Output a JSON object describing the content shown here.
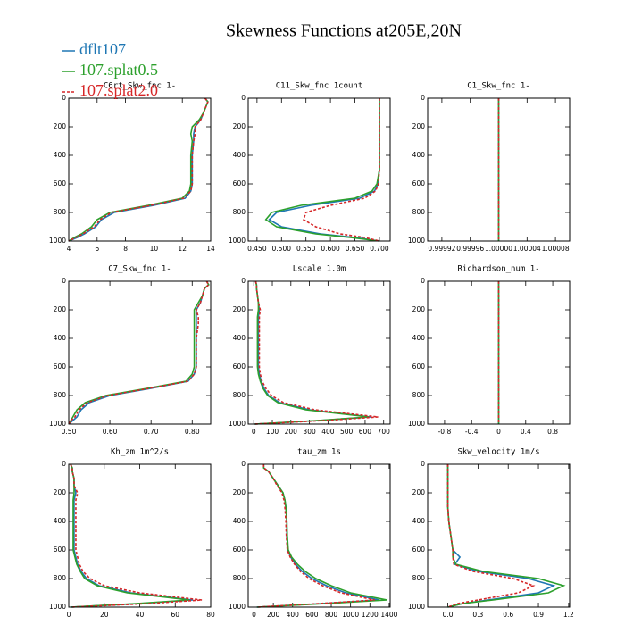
{
  "title": "Skewness Functions at205E,20N",
  "legend": [
    {
      "name": "dflt107",
      "color": "#1f77b4",
      "dash": "solid"
    },
    {
      "name": "107.splat0.5",
      "color": "#2ca02c",
      "dash": "solid"
    },
    {
      "name": "107.splat2.0",
      "color": "#d62728",
      "dash": "dashed"
    }
  ],
  "chart_data": [
    {
      "type": "line",
      "title": "C6rt_Skw_fnc  1-",
      "xlim": [
        4,
        14
      ],
      "xticks": [
        4,
        6,
        8,
        10,
        12,
        14
      ],
      "ylim": [
        1000,
        0
      ],
      "yticks": [
        0,
        200,
        400,
        600,
        800,
        1000
      ],
      "y": [
        0,
        25,
        50,
        100,
        150,
        200,
        250,
        300,
        400,
        500,
        600,
        650,
        700,
        750,
        800,
        850,
        900,
        950,
        975,
        1000
      ],
      "series": [
        {
          "values": [
            13.6,
            13.8,
            13.7,
            13.5,
            13.3,
            12.9,
            12.8,
            12.8,
            12.7,
            12.7,
            12.7,
            12.6,
            12.2,
            10,
            7.2,
            6.3,
            5.9,
            5.1,
            4.6,
            4.0
          ]
        },
        {
          "values": [
            13.6,
            13.8,
            13.7,
            13.5,
            13.2,
            12.7,
            12.6,
            12.7,
            12.6,
            12.6,
            12.6,
            12.5,
            12.0,
            9.6,
            6.9,
            6.0,
            5.6,
            4.9,
            4.4,
            4.0
          ]
        },
        {
          "values": [
            13.6,
            13.8,
            13.7,
            13.5,
            13.3,
            12.9,
            12.9,
            12.8,
            12.7,
            12.7,
            12.7,
            12.6,
            12.1,
            9.8,
            7.0,
            6.2,
            5.8,
            5.0,
            4.5,
            4.0
          ]
        }
      ]
    },
    {
      "type": "line",
      "title": "C11_Skw_fnc  1count",
      "xlim": [
        0.432,
        0.722
      ],
      "xticks": [
        {
          "value": 0.45,
          "label": "0.450"
        },
        {
          "value": 0.5,
          "label": "0.500"
        },
        {
          "value": 0.55,
          "label": "0.550"
        },
        {
          "value": 0.6,
          "label": "0.600"
        },
        {
          "value": 0.65,
          "label": "0.650"
        },
        {
          "value": 0.7,
          "label": "0.700"
        }
      ],
      "ylim": [
        1000,
        0
      ],
      "yticks": [
        0,
        200,
        400,
        600,
        800,
        1000
      ],
      "y": [
        0,
        25,
        50,
        100,
        150,
        200,
        250,
        300,
        400,
        500,
        600,
        650,
        700,
        750,
        800,
        850,
        900,
        950,
        975,
        1000
      ],
      "series": [
        {
          "values": [
            0.7,
            0.7,
            0.7,
            0.7,
            0.7,
            0.7,
            0.7,
            0.7,
            0.7,
            0.7,
            0.697,
            0.69,
            0.66,
            0.56,
            0.49,
            0.475,
            0.5,
            0.58,
            0.65,
            0.7
          ]
        },
        {
          "values": [
            0.7,
            0.7,
            0.7,
            0.7,
            0.7,
            0.7,
            0.7,
            0.7,
            0.7,
            0.7,
            0.695,
            0.685,
            0.65,
            0.54,
            0.48,
            0.468,
            0.49,
            0.57,
            0.64,
            0.7
          ]
        },
        {
          "values": [
            0.7,
            0.7,
            0.7,
            0.7,
            0.7,
            0.7,
            0.7,
            0.7,
            0.7,
            0.7,
            0.698,
            0.692,
            0.67,
            0.6,
            0.55,
            0.545,
            0.57,
            0.62,
            0.67,
            0.7
          ]
        }
      ]
    },
    {
      "type": "line",
      "title": "C1_Skw_fnc  1-",
      "xlim": [
        0.9999,
        1.0001
      ],
      "xticks": [
        0.99992,
        0.99996,
        {
          "value": 1,
          "label": "1.00000"
        },
        1.00004,
        1.00008
      ],
      "ylim": [
        1000,
        0
      ],
      "yticks": [
        0,
        200,
        400,
        600,
        800,
        1000
      ],
      "y": [
        0,
        1000
      ],
      "series": [
        {
          "values": [
            1,
            1
          ]
        },
        {
          "values": [
            1,
            1
          ]
        },
        {
          "values": [
            1,
            1
          ]
        }
      ]
    },
    {
      "type": "line",
      "title": "C7_Skw_fnc  1-",
      "xlim": [
        0.5,
        0.845
      ],
      "xticks": [
        {
          "value": 0.5,
          "label": "0.50"
        },
        {
          "value": 0.6,
          "label": "0.60"
        },
        {
          "value": 0.7,
          "label": "0.70"
        },
        {
          "value": 0.8,
          "label": "0.80"
        }
      ],
      "ylim": [
        1000,
        0
      ],
      "yticks": [
        0,
        200,
        400,
        600,
        800,
        1000
      ],
      "y": [
        0,
        25,
        50,
        100,
        150,
        200,
        250,
        300,
        400,
        500,
        600,
        650,
        700,
        750,
        800,
        850,
        900,
        950,
        975,
        1000
      ],
      "series": [
        {
          "values": [
            0.835,
            0.84,
            0.83,
            0.825,
            0.82,
            0.81,
            0.81,
            0.81,
            0.81,
            0.81,
            0.81,
            0.805,
            0.79,
            0.7,
            0.6,
            0.55,
            0.53,
            0.52,
            0.51,
            0.5
          ]
        },
        {
          "values": [
            0.835,
            0.84,
            0.83,
            0.825,
            0.815,
            0.805,
            0.805,
            0.805,
            0.805,
            0.805,
            0.805,
            0.8,
            0.785,
            0.69,
            0.59,
            0.54,
            0.52,
            0.51,
            0.505,
            0.5
          ]
        },
        {
          "values": [
            0.835,
            0.84,
            0.83,
            0.825,
            0.82,
            0.81,
            0.815,
            0.815,
            0.81,
            0.81,
            0.81,
            0.805,
            0.79,
            0.695,
            0.595,
            0.545,
            0.525,
            0.515,
            0.505,
            0.5
          ]
        }
      ]
    },
    {
      "type": "line",
      "title": "Lscale  1.0m",
      "xlim": [
        -30,
        735
      ],
      "xticks": [
        0,
        100,
        200,
        300,
        400,
        500,
        600,
        700
      ],
      "ylim": [
        1000,
        0
      ],
      "yticks": [
        0,
        200,
        400,
        600,
        800,
        1000
      ],
      "y": [
        0,
        25,
        50,
        100,
        150,
        200,
        250,
        300,
        400,
        500,
        600,
        650,
        700,
        750,
        800,
        850,
        900,
        950,
        975,
        1000
      ],
      "series": [
        {
          "values": [
            10,
            15,
            15,
            20,
            25,
            30,
            25,
            25,
            25,
            25,
            25,
            30,
            40,
            55,
            80,
            140,
            300,
            630,
            350,
            5
          ]
        },
        {
          "values": [
            10,
            15,
            15,
            20,
            25,
            25,
            20,
            20,
            20,
            20,
            20,
            25,
            35,
            50,
            75,
            130,
            280,
            620,
            340,
            5
          ]
        },
        {
          "values": [
            10,
            15,
            15,
            20,
            25,
            35,
            30,
            30,
            30,
            30,
            30,
            35,
            45,
            65,
            95,
            160,
            330,
            670,
            380,
            5
          ]
        }
      ]
    },
    {
      "type": "line",
      "title": "Richardson_num  1-",
      "xlim": [
        -1.05,
        1.05
      ],
      "xticks": [
        -0.8,
        -0.4,
        0,
        0.4,
        0.8
      ],
      "ylim": [
        1000,
        0
      ],
      "yticks": [
        0,
        200,
        400,
        600,
        800,
        1000
      ],
      "y": [
        0,
        1000
      ],
      "series": [
        {
          "values": [
            0,
            0
          ]
        },
        {
          "values": [
            0,
            0
          ]
        },
        {
          "values": [
            0,
            0
          ]
        }
      ]
    },
    {
      "type": "line",
      "title": "Kh_zm  1m^2/s",
      "xlim": [
        0,
        80
      ],
      "xticks": [
        0,
        20,
        40,
        60,
        80
      ],
      "ylim": [
        1000,
        0
      ],
      "yticks": [
        0,
        200,
        400,
        600,
        800,
        1000
      ],
      "y": [
        0,
        25,
        50,
        100,
        150,
        200,
        250,
        300,
        400,
        500,
        600,
        650,
        700,
        750,
        800,
        850,
        900,
        950,
        975,
        1000
      ],
      "series": [
        {
          "values": [
            1,
            2,
            2,
            3,
            3,
            4,
            3,
            3,
            3,
            3,
            3,
            4,
            5,
            7,
            10,
            17,
            35,
            70,
            40,
            1
          ]
        },
        {
          "values": [
            1,
            2,
            2,
            3,
            3,
            3,
            2.5,
            2.5,
            2.5,
            2.5,
            2.5,
            3.5,
            4.5,
            6.5,
            9,
            16,
            33,
            68,
            38,
            1
          ]
        },
        {
          "values": [
            1,
            2,
            2,
            3,
            3,
            5,
            4,
            4,
            4,
            4,
            4,
            5,
            6,
            8,
            12,
            20,
            40,
            75,
            45,
            1
          ]
        }
      ]
    },
    {
      "type": "line",
      "title": "tau_zm  1s",
      "xlim": [
        -60,
        1410
      ],
      "xticks": [
        0,
        200,
        400,
        600,
        800,
        1000,
        1200,
        1400
      ],
      "ylim": [
        1000,
        0
      ],
      "yticks": [
        0,
        200,
        400,
        600,
        800,
        1000
      ],
      "y": [
        0,
        25,
        50,
        100,
        150,
        200,
        250,
        300,
        400,
        500,
        600,
        650,
        700,
        750,
        800,
        850,
        900,
        950,
        975,
        1000
      ],
      "series": [
        {
          "values": [
            100,
            100,
            150,
            200,
            250,
            300,
            320,
            330,
            340,
            340,
            350,
            380,
            430,
            500,
            600,
            750,
            950,
            1300,
            700,
            30
          ]
        },
        {
          "values": [
            100,
            100,
            150,
            200,
            250,
            300,
            320,
            330,
            340,
            345,
            355,
            390,
            450,
            530,
            640,
            800,
            1000,
            1380,
            750,
            30
          ]
        },
        {
          "values": [
            100,
            100,
            150,
            200,
            240,
            290,
            310,
            320,
            330,
            335,
            345,
            375,
            420,
            480,
            570,
            710,
            900,
            1250,
            680,
            30
          ]
        }
      ]
    },
    {
      "type": "line",
      "title": "Skw_velocity  1m/s",
      "xlim": [
        -0.2,
        1.21
      ],
      "xticks": [
        {
          "value": 0,
          "label": "0.0"
        },
        0.3,
        0.6,
        0.9,
        1.2
      ],
      "ylim": [
        1000,
        0
      ],
      "yticks": [
        0,
        200,
        400,
        600,
        800,
        1000
      ],
      "y": [
        0,
        25,
        50,
        100,
        150,
        200,
        250,
        300,
        400,
        500,
        600,
        650,
        700,
        750,
        800,
        850,
        900,
        950,
        975,
        1000
      ],
      "series": [
        {
          "values": [
            0,
            0,
            0,
            0,
            0,
            0,
            0,
            0,
            0.01,
            0.03,
            0.05,
            0.12,
            0.07,
            0.3,
            0.8,
            1.05,
            0.9,
            0.4,
            0.15,
            0
          ]
        },
        {
          "values": [
            0,
            0,
            0,
            0,
            0,
            0,
            0,
            0,
            0.01,
            0.03,
            0.05,
            0.05,
            0.08,
            0.35,
            0.9,
            1.15,
            1.0,
            0.45,
            0.15,
            0
          ]
        },
        {
          "values": [
            0,
            0,
            0,
            0,
            0,
            0,
            0,
            0,
            0.01,
            0.03,
            0.05,
            0.05,
            0.06,
            0.25,
            0.65,
            0.85,
            0.7,
            0.3,
            0.1,
            0
          ]
        }
      ]
    }
  ]
}
